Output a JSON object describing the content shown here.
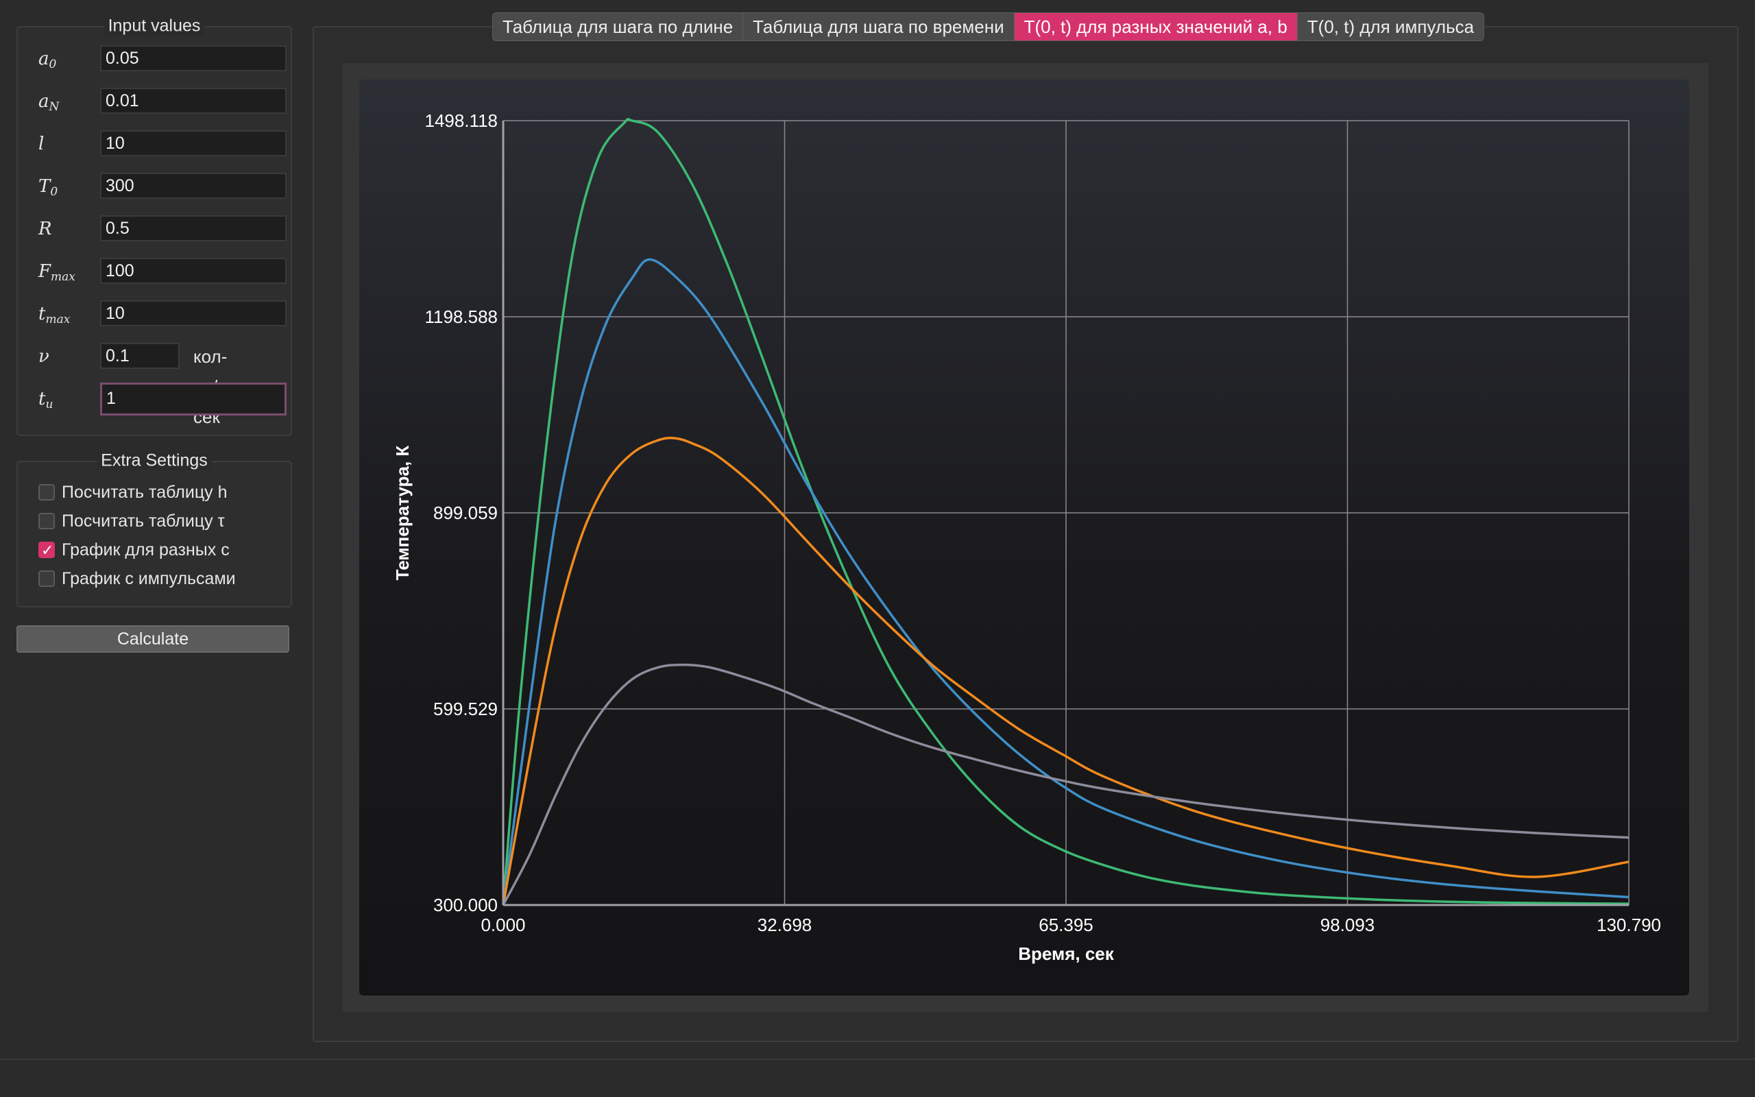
{
  "inputs": {
    "title": "Input values",
    "fields": [
      {
        "sym": "a",
        "sub": "0",
        "value": "0.05"
      },
      {
        "sym": "a",
        "sub": "N",
        "value": "0.01"
      },
      {
        "sym": "l",
        "sub": "",
        "value": "10"
      },
      {
        "sym": "T",
        "sub": "0",
        "value": "300"
      },
      {
        "sym": "R",
        "sub": "",
        "value": "0.5"
      },
      {
        "sym": "F",
        "sub": "max",
        "value": "100"
      },
      {
        "sym": "t",
        "sub": "max",
        "value": "10"
      },
      {
        "sym": "ν",
        "sub": "",
        "value": "0.1",
        "unit": "кол-во/сек"
      },
      {
        "sym": "t",
        "sub": "u",
        "value": "1"
      }
    ]
  },
  "extra": {
    "title": "Extra Settings",
    "options": [
      {
        "label": "Посчитать таблицу h",
        "checked": false
      },
      {
        "label": "Посчитать таблицу τ",
        "checked": false
      },
      {
        "label": "График для разных c",
        "checked": true
      },
      {
        "label": "График с импульсами",
        "checked": false
      }
    ]
  },
  "calculate_label": "Calculate",
  "tabs": [
    {
      "label": "Таблица для шага по длине",
      "active": false
    },
    {
      "label": "Таблица для шага по времени",
      "active": false
    },
    {
      "label": "T(0, t) для разных значений a, b",
      "active": true
    },
    {
      "label": "T(0, t) для импульса",
      "active": false
    }
  ],
  "chart_data": {
    "type": "line",
    "title": "",
    "xlabel": "Время, сек",
    "ylabel": "Температура, К",
    "xlim": [
      0,
      130.79
    ],
    "ylim": [
      300.0,
      1498.118
    ],
    "x_ticks": [
      "0.000",
      "32.698",
      "65.395",
      "98.093",
      "130.790"
    ],
    "y_ticks": [
      "300.000",
      "599.529",
      "899.059",
      "1198.588",
      "1498.118"
    ],
    "grid": true,
    "series": [
      {
        "color": "#3dba74",
        "x": [
          0,
          2,
          5,
          8,
          11,
          14,
          15,
          18,
          22,
          26,
          30,
          35,
          40,
          45,
          50,
          55,
          60,
          65,
          70,
          75,
          80,
          85,
          90,
          100,
          110,
          120,
          130.79
        ],
        "y": [
          300,
          620,
          1000,
          1290,
          1440,
          1494,
          1498,
          1480,
          1400,
          1280,
          1140,
          960,
          800,
          660,
          560,
          480,
          420,
          384,
          360,
          342,
          330,
          322,
          316,
          309,
          305,
          303,
          302
        ]
      },
      {
        "color": "#3f8fc8",
        "x": [
          0,
          3,
          6,
          9,
          12,
          15,
          17,
          20,
          24,
          30,
          35,
          40,
          45,
          50,
          55,
          60,
          65,
          70,
          80,
          90,
          100,
          110,
          120,
          130.79
        ],
        "y": [
          300,
          600,
          880,
          1070,
          1190,
          1258,
          1286,
          1260,
          1200,
          1070,
          950,
          840,
          745,
          660,
          590,
          530,
          482,
          446,
          400,
          368,
          346,
          331,
          321,
          312
        ]
      },
      {
        "color": "#f28a1d",
        "x": [
          0,
          3,
          6,
          9,
          12,
          15,
          18,
          20,
          22,
          25,
          30,
          35,
          40,
          45,
          50,
          55,
          60,
          65,
          70,
          80,
          90,
          100,
          110,
          120,
          130.79
        ],
        "y": [
          300,
          520,
          720,
          860,
          945,
          990,
          1010,
          1013,
          1005,
          985,
          930,
          860,
          790,
          725,
          665,
          615,
          568,
          530,
          495,
          445,
          410,
          382,
          360,
          343,
          366
        ]
      },
      {
        "color": "#8c8c9c",
        "x": [
          0,
          3,
          6,
          9,
          12,
          15,
          18,
          21,
          24,
          28,
          32,
          36,
          40,
          45,
          50,
          55,
          60,
          65,
          70,
          80,
          90,
          100,
          110,
          120,
          130.79
        ],
        "y": [
          300,
          375,
          465,
          545,
          605,
          645,
          663,
          667,
          663,
          648,
          630,
          608,
          588,
          562,
          540,
          522,
          505,
          490,
          477,
          457,
          441,
          428,
          418,
          410,
          403
        ]
      }
    ]
  }
}
